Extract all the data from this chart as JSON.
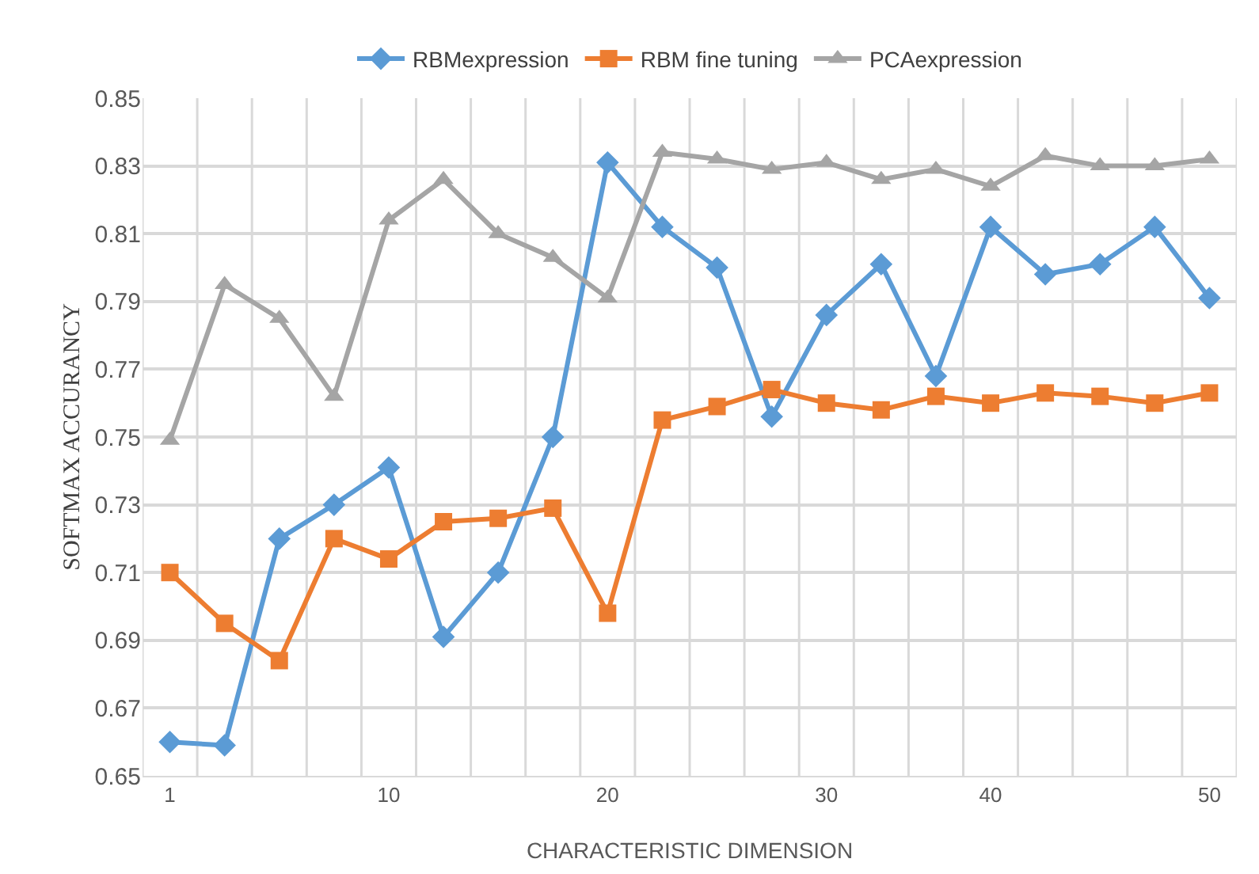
{
  "chart_data": {
    "type": "line",
    "xlabel": "CHARACTERISTIC DIMENSION",
    "ylabel": "SOFTMAX ACCURANCY",
    "categories": [
      "1",
      null,
      null,
      null,
      "10",
      null,
      null,
      null,
      "20",
      null,
      null,
      null,
      "30",
      null,
      null,
      "40",
      null,
      null,
      null,
      "50"
    ],
    "series": [
      {
        "name": "RBMexpression",
        "color": "#5b9bd5",
        "marker": "diamond",
        "values": [
          0.66,
          0.659,
          0.72,
          0.73,
          0.741,
          0.691,
          0.71,
          0.75,
          0.831,
          0.812,
          0.8,
          0.756,
          0.786,
          0.801,
          0.768,
          0.812,
          0.798,
          0.801,
          0.812,
          0.791
        ]
      },
      {
        "name": "RBM fine tuning",
        "color": "#ed7d31",
        "marker": "square",
        "values": [
          0.71,
          0.695,
          0.684,
          0.72,
          0.714,
          0.725,
          0.726,
          0.729,
          0.698,
          0.755,
          0.759,
          0.764,
          0.76,
          0.758,
          0.762,
          0.76,
          0.763,
          0.762,
          0.76,
          0.763
        ]
      },
      {
        "name": "PCAexpression",
        "color": "#a5a5a5",
        "marker": "triangle",
        "values": [
          0.749,
          0.795,
          0.785,
          0.762,
          0.814,
          0.826,
          0.81,
          0.803,
          0.791,
          0.834,
          0.832,
          0.829,
          0.831,
          0.826,
          0.829,
          0.824,
          0.833,
          0.83,
          0.83,
          0.832
        ]
      }
    ],
    "ylim": [
      0.65,
      0.85
    ],
    "yticks": [
      0.65,
      0.67,
      0.69,
      0.71,
      0.73,
      0.75,
      0.77,
      0.79,
      0.81,
      0.83,
      0.85
    ],
    "grid": true,
    "legend": "top"
  }
}
